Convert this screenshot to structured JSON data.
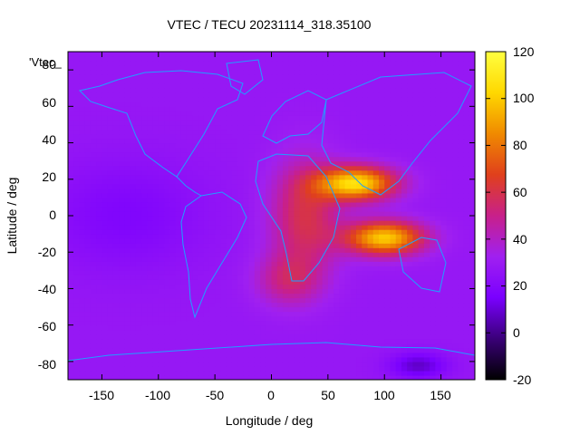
{
  "chart_data": {
    "type": "heatmap",
    "title": "VTEC / TECU 20231114_318.35100",
    "xlabel": "Longitude / deg",
    "ylabel": "Latitude / deg",
    "xlim": [
      -180,
      180
    ],
    "ylim": [
      -90,
      90
    ],
    "x_ticks": [
      -150,
      -100,
      -50,
      0,
      50,
      100,
      150
    ],
    "y_ticks": [
      -80,
      -60,
      -40,
      -20,
      0,
      20,
      40,
      60,
      80
    ],
    "colorbar": {
      "range": [
        -20,
        120
      ],
      "ticks": [
        -20,
        0,
        20,
        40,
        60,
        80,
        100,
        120
      ],
      "colors": [
        "#000000",
        "#3a0078",
        "#7a00ff",
        "#a020f0",
        "#c8208a",
        "#e0401c",
        "#f08a00",
        "#ffd800",
        "#ffff40"
      ]
    },
    "legend_entry": "'Vtec_",
    "grid": false,
    "coastline_color": "#1ea0ff",
    "background_vtec_tecu": 28,
    "features": [
      {
        "name": "equatorial anomaly north crest",
        "lon": 75,
        "lat": 18,
        "vtec_tecu": 105
      },
      {
        "name": "equatorial anomaly south crest",
        "lon": 100,
        "lat": -12,
        "vtec_tecu": 100
      },
      {
        "name": "african sector enhancement",
        "lon": 30,
        "lat": 0,
        "vtec_tecu": 60
      },
      {
        "name": "south atlantic enhancement",
        "lon": 15,
        "lat": -35,
        "vtec_tecu": 50
      },
      {
        "name": "pacific minimum",
        "lon": -130,
        "lat": 0,
        "vtec_tecu": 18
      },
      {
        "name": "antarctic minimum",
        "lon": 130,
        "lat": -82,
        "vtec_tecu": 8
      }
    ]
  }
}
